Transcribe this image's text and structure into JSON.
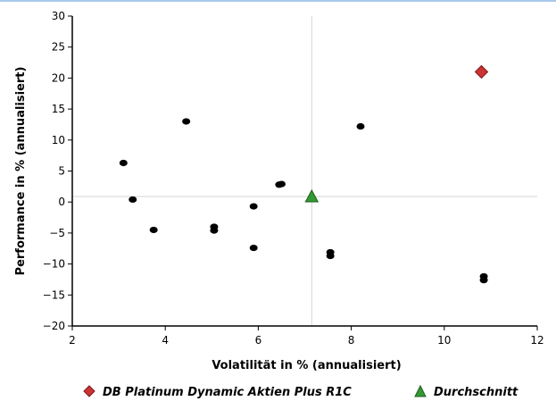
{
  "chart_data": {
    "type": "scatter",
    "xlabel": "Volatilität in % (annualisiert)",
    "ylabel": "Performance in % (annualisiert)",
    "xlim": [
      2,
      12
    ],
    "ylim": [
      -20,
      30
    ],
    "xticks": [
      "2",
      "4",
      "6",
      "8",
      "10",
      "12"
    ],
    "yticks": [
      "30",
      "25",
      "20",
      "15",
      "10",
      "5",
      "0",
      "-5",
      "-10",
      "-15",
      "-20"
    ],
    "reference_lines": {
      "x": 7.15,
      "y": 0.9
    },
    "grid": false,
    "legend_position": "bottom",
    "series": [
      {
        "type": "scatter",
        "marker": "circle",
        "color": "#000000",
        "points": [
          {
            "x": 3.1,
            "y": 6.3
          },
          {
            "x": 3.3,
            "y": 0.4
          },
          {
            "x": 3.75,
            "y": -4.5
          },
          {
            "x": 4.45,
            "y": 13.0
          },
          {
            "x": 5.05,
            "y": -4.0
          },
          {
            "x": 5.05,
            "y": -4.6
          },
          {
            "x": 5.9,
            "y": -0.7
          },
          {
            "x": 5.9,
            "y": -7.4
          },
          {
            "x": 6.45,
            "y": 2.8
          },
          {
            "x": 6.5,
            "y": 2.9
          },
          {
            "x": 7.55,
            "y": -8.1
          },
          {
            "x": 7.55,
            "y": -8.7
          },
          {
            "x": 8.2,
            "y": 12.2
          },
          {
            "x": 10.85,
            "y": -12.0
          },
          {
            "x": 10.85,
            "y": -12.6
          }
        ]
      },
      {
        "name": "DB Platinum Dynamic Aktien Plus R1C",
        "marker": "diamond",
        "color": "#cc3333",
        "points": [
          {
            "x": 10.8,
            "y": 21.0
          }
        ]
      },
      {
        "name": "Durchschnitt",
        "marker": "triangle",
        "color": "#339933",
        "points": [
          {
            "x": 7.15,
            "y": 0.9
          }
        ]
      }
    ]
  }
}
